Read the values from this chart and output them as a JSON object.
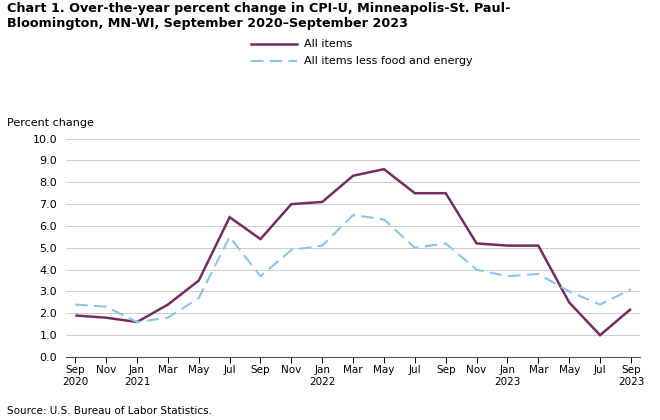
{
  "title_line1": "Chart 1. Over-the-year percent change in CPI-U, Minneapolis-St. Paul-",
  "title_line2": "Bloomington, MN-WI, September 2020–September 2023",
  "ylabel": "Percent change",
  "source": "Source: U.S. Bureau of Labor Statistics.",
  "ylim": [
    0.0,
    10.0
  ],
  "yticks": [
    0.0,
    1.0,
    2.0,
    3.0,
    4.0,
    5.0,
    6.0,
    7.0,
    8.0,
    9.0,
    10.0
  ],
  "x_labels": [
    "Sep\n2020",
    "Nov",
    "Jan\n2021",
    "Mar",
    "May",
    "Jul",
    "Sep",
    "Nov",
    "Jan\n2022",
    "Mar",
    "May",
    "Jul",
    "Sep",
    "Nov",
    "Jan\n2023",
    "Mar",
    "May",
    "Jul",
    "Sep\n2023"
  ],
  "all_items": [
    1.9,
    1.8,
    1.6,
    2.4,
    3.5,
    6.4,
    5.4,
    7.0,
    7.1,
    8.3,
    8.6,
    7.5,
    7.5,
    5.2,
    5.1,
    5.1,
    2.5,
    1.0,
    2.2
  ],
  "core_items": [
    2.4,
    2.3,
    1.6,
    1.8,
    2.7,
    5.5,
    3.7,
    4.9,
    5.1,
    6.5,
    6.3,
    5.0,
    5.2,
    4.0,
    3.7,
    3.8,
    3.0,
    2.4,
    3.1
  ],
  "all_items_color": "#722F5E",
  "core_items_color": "#8BC4E8",
  "background_color": "#ffffff",
  "grid_color": "#cccccc",
  "legend_label_all": "All items",
  "legend_label_core": "All items less food and energy"
}
